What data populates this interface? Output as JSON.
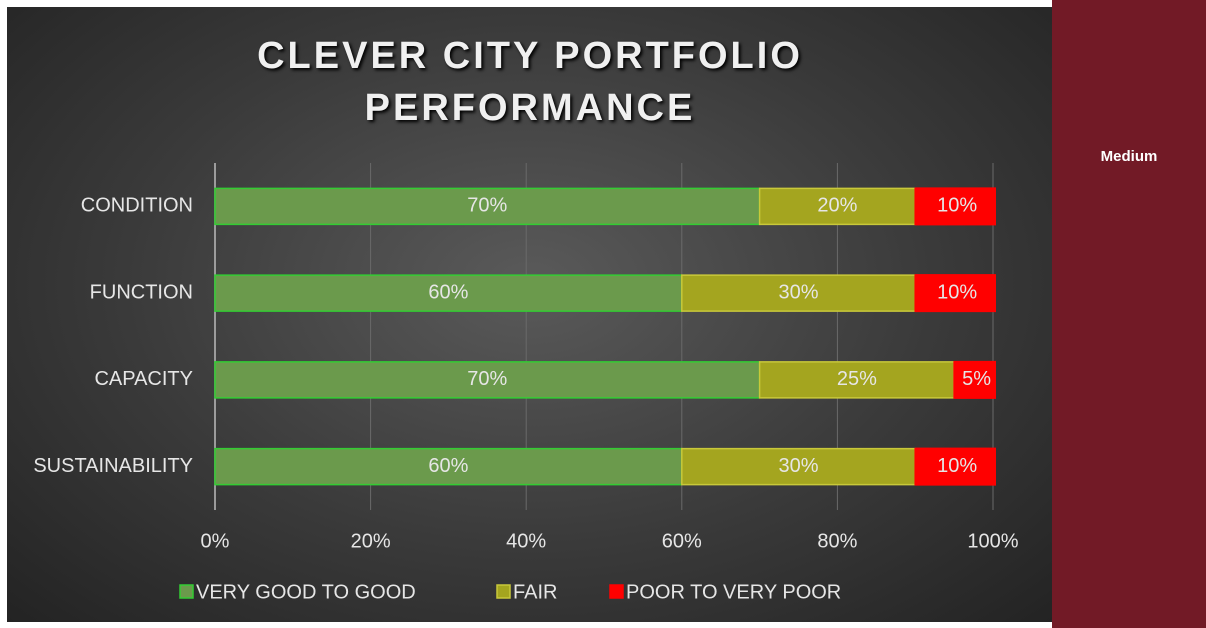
{
  "chart_data": {
    "type": "stacked_barh",
    "title": "CLEVER CITY PORTFOLIO PERFORMANCE",
    "categories": [
      "CONDITION",
      "FUNCTION",
      "CAPACITY",
      "SUSTAINABILITY"
    ],
    "series": [
      {
        "name": "VERY GOOD TO GOOD",
        "color": "#6b9a4c",
        "values": [
          70,
          60,
          70,
          60
        ],
        "value_labels": [
          "70%",
          "60%",
          "70%",
          "60%"
        ]
      },
      {
        "name": "FAIR",
        "color": "#a4a51f",
        "values": [
          20,
          30,
          25,
          30
        ],
        "value_labels": [
          "20%",
          "30%",
          "25%",
          "30%"
        ]
      },
      {
        "name": "POOR TO VERY POOR",
        "color": "#ff0000",
        "values": [
          10,
          10,
          5,
          10
        ],
        "value_labels": [
          "10%",
          "10%",
          "5%",
          "10%"
        ]
      }
    ],
    "xlim": [
      0,
      100
    ],
    "xticks": [
      {
        "value": 0,
        "label": "0%"
      },
      {
        "value": 20,
        "label": "20%"
      },
      {
        "value": 40,
        "label": "40%"
      },
      {
        "value": 60,
        "label": "60%"
      },
      {
        "value": 80,
        "label": "80%"
      },
      {
        "value": 100,
        "label": "100%"
      }
    ],
    "grid": true,
    "legend": "bottom"
  },
  "panel": {
    "label": "Medium"
  }
}
